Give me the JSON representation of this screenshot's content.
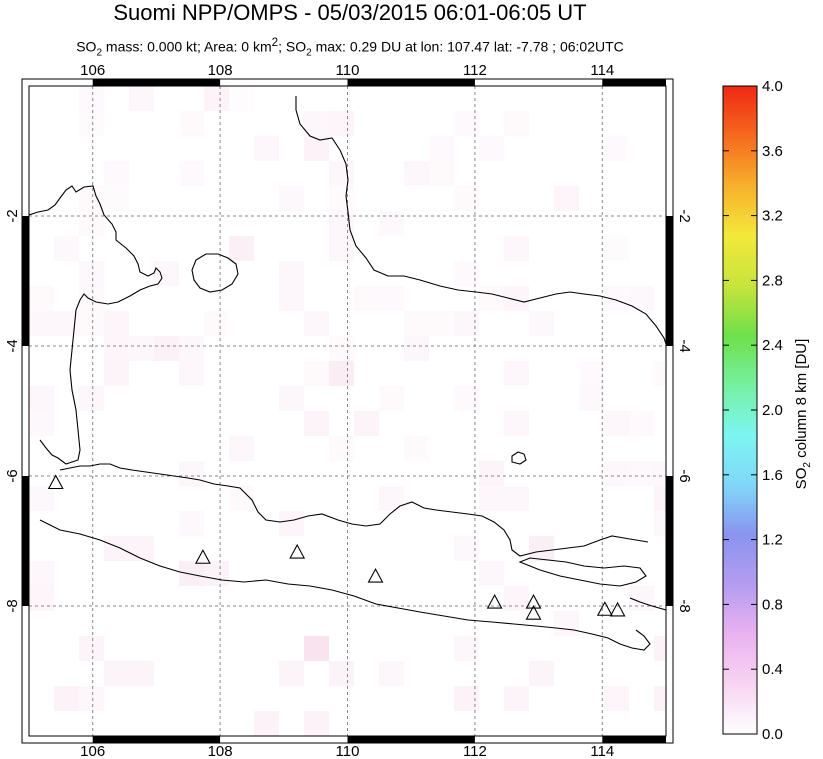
{
  "title": "Suomi NPP/OMPS - 05/03/2015 06:01-06:05 UT",
  "subtitle": {
    "part1": "SO",
    "sub1": "2",
    "part2": " mass: 0.000 kt; Area: 0 km",
    "sup": "2",
    "part3": "; SO",
    "sub2": "2",
    "part4": " max: 0.29 DU at lon: 107.47 lat: -7.78 ; 06:02UTC"
  },
  "map": {
    "lon_range": [
      105,
      115
    ],
    "lat_range": [
      -10,
      0
    ],
    "lon_ticks": [
      106,
      108,
      110,
      112,
      114
    ],
    "lat_ticks": [
      -2,
      -4,
      -6,
      -8
    ],
    "lon_tick_labels": [
      "106",
      "108",
      "110",
      "112",
      "114"
    ],
    "lat_tick_labels": [
      "-2",
      "-4",
      "-6",
      "-8"
    ],
    "volcanoes": [
      {
        "lon": 105.42,
        "lat": -6.1
      },
      {
        "lon": 107.73,
        "lat": -7.25
      },
      {
        "lon": 109.21,
        "lat": -7.17
      },
      {
        "lon": 110.44,
        "lat": -7.54
      },
      {
        "lon": 112.31,
        "lat": -7.94
      },
      {
        "lon": 112.92,
        "lat": -7.94
      },
      {
        "lon": 112.92,
        "lat": -8.11
      },
      {
        "lon": 114.04,
        "lat": -8.05
      },
      {
        "lon": 114.24,
        "lat": -8.06
      }
    ]
  },
  "colorbar": {
    "ticks": [
      "0.0",
      "0.4",
      "0.8",
      "1.2",
      "1.6",
      "2.0",
      "2.4",
      "2.8",
      "3.2",
      "3.6",
      "4.0"
    ],
    "range": [
      0,
      4.0
    ],
    "label_main": "SO",
    "label_sub": "2",
    "label_rest": " column 8 km [DU]",
    "colors": [
      "#ffffff",
      "#f7d4f2",
      "#eab2f0",
      "#b49cf0",
      "#8a94f0",
      "#80d8f8",
      "#7cf5f0",
      "#76f0a0",
      "#6ee04a",
      "#c8e43c",
      "#f3e83a",
      "#f7b02c",
      "#f56a1e",
      "#f02814"
    ]
  }
}
